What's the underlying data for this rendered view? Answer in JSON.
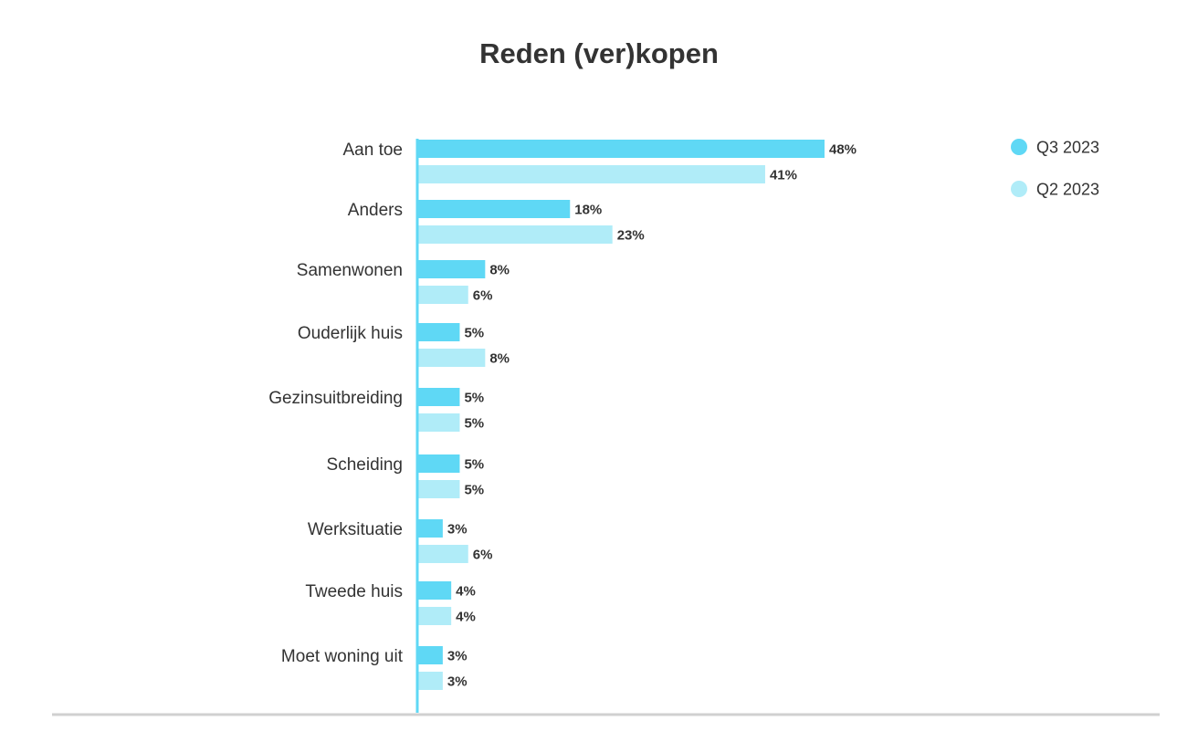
{
  "chart_data": {
    "type": "bar",
    "orientation": "horizontal",
    "title": "Reden (ver)kopen",
    "xlabel": "",
    "ylabel": "",
    "xlim": [
      0,
      48
    ],
    "grid": false,
    "legend_position": "top-right",
    "categories": [
      "Aan toe",
      "Anders",
      "Samenwonen",
      "Ouderlijk huis",
      "Gezinsuitbreiding",
      "Scheiding",
      "Werksituatie",
      "Tweede huis",
      "Moet woning uit"
    ],
    "series": [
      {
        "name": "Q3 2023",
        "color": "#5fd8f5",
        "values": [
          48,
          18,
          8,
          5,
          5,
          5,
          3,
          4,
          3
        ],
        "labels": [
          "48%",
          "18%",
          "8%",
          "5%",
          "5%",
          "5%",
          "3%",
          "4%",
          "3%"
        ]
      },
      {
        "name": "Q2 2023",
        "color": "#b0ecf8",
        "values": [
          41,
          23,
          6,
          8,
          5,
          5,
          6,
          4,
          3
        ],
        "labels": [
          "41%",
          "23%",
          "6%",
          "8%",
          "5%",
          "5%",
          "6%",
          "4%",
          "3%"
        ]
      }
    ],
    "axis_color": "#5fd8f5",
    "baseline_color": "#d0d0d0"
  }
}
